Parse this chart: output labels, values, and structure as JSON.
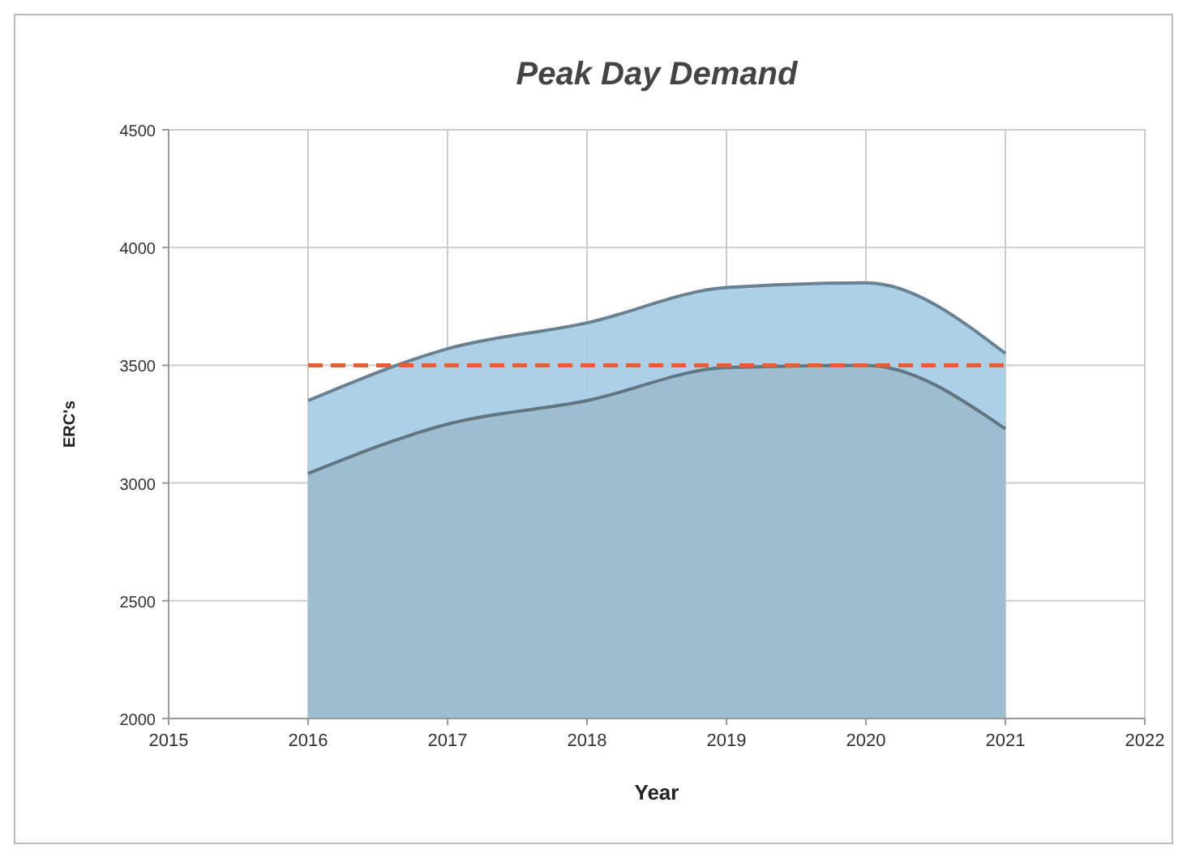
{
  "chart_data": {
    "type": "area",
    "title": "Peak Day Demand",
    "xlabel": "Year",
    "ylabel": "ERC's",
    "x": [
      2016,
      2017,
      2018,
      2019,
      2020,
      2021
    ],
    "series": [
      {
        "color": "#a8cde6",
        "values": [
          3350,
          3570,
          3680,
          3830,
          3850,
          3550
        ]
      },
      {
        "color": "#9cbccf",
        "values": [
          3040,
          3250,
          3350,
          3490,
          3500,
          3230
        ]
      },
      {
        "type": "line",
        "color": "#e0603a",
        "line_style": "dashed",
        "values": [
          3500,
          3500,
          3500,
          3500,
          3500,
          3500
        ]
      }
    ],
    "xlim": [
      2015,
      2022
    ],
    "xticks": [
      2015,
      2016,
      2017,
      2018,
      2019,
      2020,
      2021,
      2022
    ],
    "ylim": [
      2000,
      4500
    ],
    "yticks": [
      2000,
      2500,
      3000,
      3500,
      4000,
      4500
    ],
    "grid": true
  }
}
